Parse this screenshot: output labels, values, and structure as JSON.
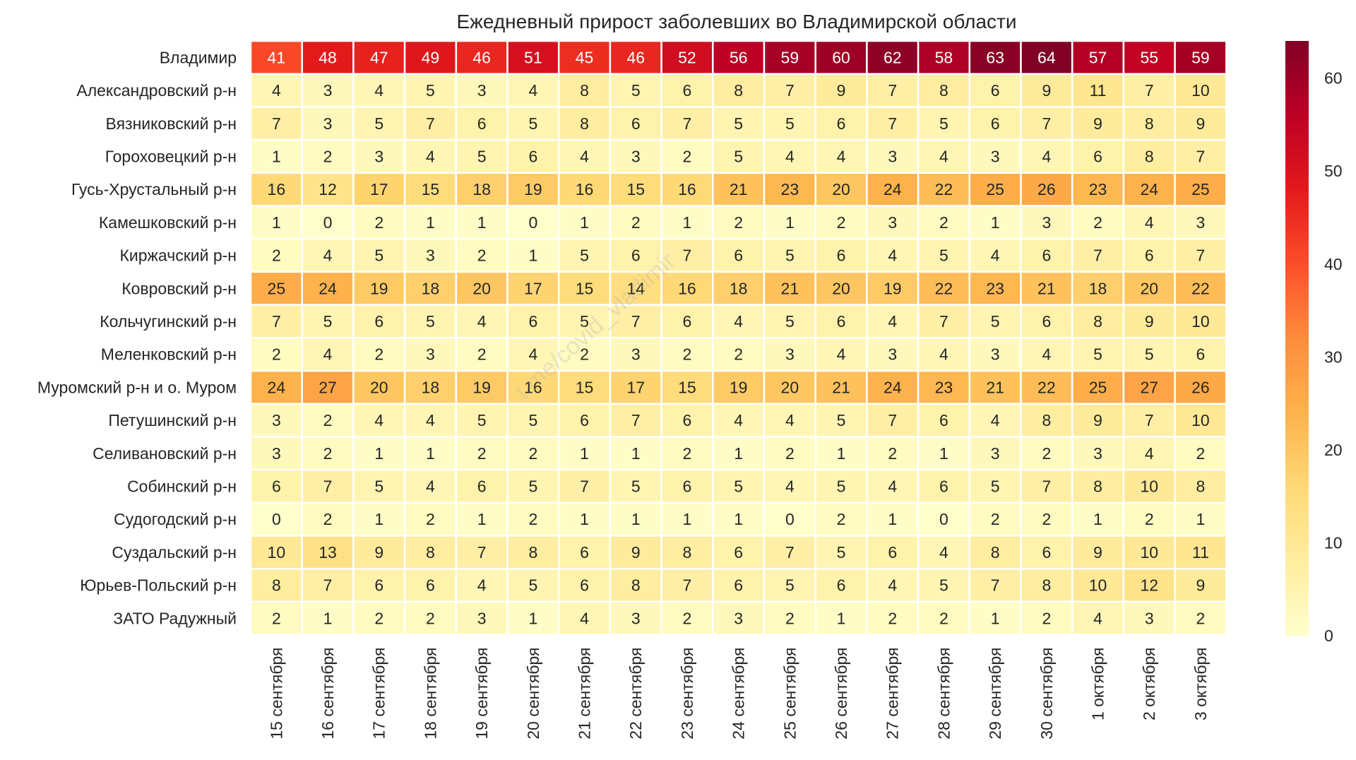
{
  "chart_data": {
    "type": "heatmap",
    "title": "Ежедневный прирост заболевших во Владимирской области",
    "watermark": "t.me/covid_vladimir",
    "rows": [
      "Владимир",
      "Александровский р-н",
      "Вязниковский р-н",
      "Гороховецкий р-н",
      "Гусь-Хрустальный р-н",
      "Камешковский р-н",
      "Киржачский р-н",
      "Ковровский р-н",
      "Кольчугинский р-н",
      "Меленковский р-н",
      "Муромский р-н и о. Муром",
      "Петушинский р-н",
      "Селивановский р-н",
      "Собинский р-н",
      "Судогодский р-н",
      "Суздальский р-н",
      "Юрьев-Польский р-н",
      "ЗАТО Радужный"
    ],
    "columns": [
      "15 сентября",
      "16 сентября",
      "17 сентября",
      "18 сентября",
      "19 сентября",
      "20 сентября",
      "21 сентября",
      "22 сентября",
      "23 сентября",
      "24 сентября",
      "25 сентября",
      "26 сентября",
      "27 сентября",
      "28 сентября",
      "29 сентября",
      "30 сентября",
      "1 октября",
      "2 октября",
      "3 октября"
    ],
    "values": [
      [
        41,
        48,
        47,
        49,
        46,
        51,
        45,
        46,
        52,
        56,
        59,
        60,
        62,
        58,
        63,
        64,
        57,
        55,
        59
      ],
      [
        4,
        3,
        4,
        5,
        3,
        4,
        8,
        5,
        6,
        8,
        7,
        9,
        7,
        8,
        6,
        9,
        11,
        7,
        10
      ],
      [
        7,
        3,
        5,
        7,
        6,
        5,
        8,
        6,
        7,
        5,
        5,
        6,
        7,
        5,
        6,
        7,
        9,
        8,
        9
      ],
      [
        1,
        2,
        3,
        4,
        5,
        6,
        4,
        3,
        2,
        5,
        4,
        4,
        3,
        4,
        3,
        4,
        6,
        8,
        7
      ],
      [
        16,
        12,
        17,
        15,
        18,
        19,
        16,
        15,
        16,
        21,
        23,
        20,
        24,
        22,
        25,
        26,
        23,
        24,
        25
      ],
      [
        1,
        0,
        2,
        1,
        1,
        0,
        1,
        2,
        1,
        2,
        1,
        2,
        3,
        2,
        1,
        3,
        2,
        4,
        3
      ],
      [
        2,
        4,
        5,
        3,
        2,
        1,
        5,
        6,
        7,
        6,
        5,
        6,
        4,
        5,
        4,
        6,
        7,
        6,
        7
      ],
      [
        25,
        24,
        19,
        18,
        20,
        17,
        15,
        14,
        16,
        18,
        21,
        20,
        19,
        22,
        23,
        21,
        18,
        20,
        22
      ],
      [
        7,
        5,
        6,
        5,
        4,
        6,
        5,
        7,
        6,
        4,
        5,
        6,
        4,
        7,
        5,
        6,
        8,
        9,
        10
      ],
      [
        2,
        4,
        2,
        3,
        2,
        4,
        2,
        3,
        2,
        2,
        3,
        4,
        3,
        4,
        3,
        4,
        5,
        5,
        6
      ],
      [
        24,
        27,
        20,
        18,
        19,
        16,
        15,
        17,
        15,
        19,
        20,
        21,
        24,
        23,
        21,
        22,
        25,
        27,
        26
      ],
      [
        3,
        2,
        4,
        4,
        5,
        5,
        6,
        7,
        6,
        4,
        4,
        5,
        7,
        6,
        4,
        8,
        9,
        7,
        10
      ],
      [
        3,
        2,
        1,
        1,
        2,
        2,
        1,
        1,
        2,
        1,
        2,
        1,
        2,
        1,
        3,
        2,
        3,
        4,
        2
      ],
      [
        6,
        7,
        5,
        4,
        6,
        5,
        7,
        5,
        6,
        5,
        4,
        5,
        4,
        6,
        5,
        7,
        8,
        10,
        8
      ],
      [
        0,
        2,
        1,
        2,
        1,
        2,
        1,
        1,
        1,
        1,
        0,
        2,
        1,
        0,
        2,
        2,
        1,
        2,
        1
      ],
      [
        10,
        13,
        9,
        8,
        7,
        8,
        6,
        9,
        8,
        6,
        7,
        5,
        6,
        4,
        8,
        6,
        9,
        10,
        11
      ],
      [
        8,
        7,
        6,
        6,
        4,
        5,
        6,
        8,
        7,
        6,
        5,
        6,
        4,
        5,
        7,
        8,
        10,
        12,
        9
      ],
      [
        2,
        1,
        2,
        2,
        3,
        1,
        4,
        3,
        2,
        3,
        2,
        1,
        2,
        2,
        1,
        2,
        4,
        3,
        2
      ]
    ],
    "colormap": "YlOrRd",
    "vmin": 0,
    "vmax": 64,
    "colorbar_ticks": [
      0,
      10,
      20,
      30,
      40,
      50,
      60
    ],
    "annotations": true,
    "grid": false,
    "colorbar_position": "right"
  }
}
